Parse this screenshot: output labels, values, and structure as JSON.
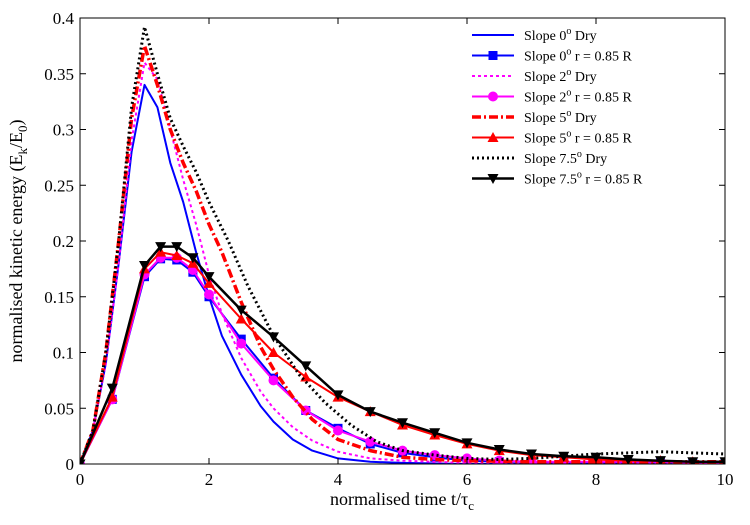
{
  "chart_data": {
    "type": "line",
    "xlabel": {
      "main": "normalised time t/τ",
      "sub": "c"
    },
    "ylabel": {
      "parts": [
        [
          "normalised kinetic energy (E",
          "normal"
        ],
        [
          "k",
          "sub"
        ],
        [
          "/E",
          "normal"
        ],
        [
          "0",
          "sub"
        ],
        [
          ")",
          "normal"
        ]
      ]
    },
    "xlim": [
      0,
      10
    ],
    "ylim": [
      0,
      0.4
    ],
    "xticks": [
      "0",
      "2",
      "4",
      "6",
      "8",
      "10"
    ],
    "yticks": [
      "0",
      "0.05",
      "0.1",
      "0.15",
      "0.2",
      "0.25",
      "0.3",
      "0.35",
      "0.4"
    ],
    "grid": false,
    "legend_position": "top-right",
    "series": [
      {
        "legend": [
          [
            "Slope 0",
            "normal"
          ],
          [
            "o",
            "sup"
          ],
          [
            "    Dry",
            "normal"
          ]
        ],
        "color": "#0000ff",
        "dash": "solid",
        "marker": "none",
        "width": 2,
        "x": [
          0,
          0.2,
          0.4,
          0.6,
          0.8,
          1.0,
          1.2,
          1.4,
          1.6,
          1.8,
          2.0,
          2.2,
          2.5,
          2.8,
          3.0,
          3.3,
          3.6,
          4.0,
          4.5,
          5.0,
          6.0,
          7.0,
          8.0,
          9.0,
          10.0
        ],
        "y": [
          0,
          0.03,
          0.09,
          0.18,
          0.28,
          0.34,
          0.32,
          0.27,
          0.235,
          0.19,
          0.15,
          0.115,
          0.08,
          0.052,
          0.038,
          0.022,
          0.012,
          0.005,
          0.002,
          0.001,
          0,
          0,
          0,
          0,
          0
        ]
      },
      {
        "legend": [
          [
            "Slope 0",
            "normal"
          ],
          [
            "o",
            "sup"
          ],
          [
            "    r = 0.85 R",
            "normal"
          ]
        ],
        "color": "#0000ff",
        "dash": "solid",
        "marker": "square",
        "width": 2,
        "x": [
          0,
          0.5,
          1.0,
          1.25,
          1.5,
          1.75,
          2.0,
          2.5,
          3.0,
          3.5,
          4.0,
          4.5,
          5.0,
          5.5,
          6.0,
          6.5,
          7.0,
          7.5,
          8.0,
          8.5,
          9.0,
          9.5,
          10.0
        ],
        "y": [
          0,
          0.058,
          0.168,
          0.184,
          0.183,
          0.172,
          0.15,
          0.112,
          0.077,
          0.048,
          0.032,
          0.018,
          0.01,
          0.006,
          0.003,
          0.002,
          0.002,
          0.001,
          0.001,
          0.001,
          0.001,
          0.001,
          0.001
        ]
      },
      {
        "legend": [
          [
            "Slope 2",
            "normal"
          ],
          [
            "o",
            "sup"
          ],
          [
            " Dry",
            "normal"
          ]
        ],
        "color": "#ff00ff",
        "dash": "3,3",
        "marker": "none",
        "width": 2,
        "x": [
          0,
          0.2,
          0.4,
          0.6,
          0.8,
          1.0,
          1.2,
          1.4,
          1.6,
          1.8,
          2.0,
          2.2,
          2.5,
          2.8,
          3.0,
          3.3,
          3.6,
          4.0,
          4.5,
          5.0,
          6.0,
          7.0,
          8.0,
          9.0,
          10.0
        ],
        "y": [
          0,
          0.03,
          0.09,
          0.18,
          0.29,
          0.36,
          0.345,
          0.3,
          0.255,
          0.215,
          0.17,
          0.135,
          0.095,
          0.065,
          0.05,
          0.033,
          0.021,
          0.011,
          0.005,
          0.003,
          0.001,
          0,
          0,
          0,
          0
        ]
      },
      {
        "legend": [
          [
            "Slope 2",
            "normal"
          ],
          [
            "o",
            "sup"
          ],
          [
            " r = 0.85 R",
            "normal"
          ]
        ],
        "color": "#ff00ff",
        "dash": "solid",
        "marker": "circle",
        "width": 2,
        "x": [
          0,
          0.5,
          1.0,
          1.25,
          1.5,
          1.75,
          2.0,
          2.5,
          3.0,
          3.5,
          4.0,
          4.5,
          5.0,
          5.5,
          6.0,
          6.5,
          7.0,
          7.5,
          8.0,
          8.5,
          9.0,
          9.5,
          10.0
        ],
        "y": [
          0,
          0.058,
          0.17,
          0.185,
          0.185,
          0.174,
          0.152,
          0.108,
          0.075,
          0.048,
          0.03,
          0.02,
          0.012,
          0.008,
          0.005,
          0.003,
          0.002,
          0.002,
          0.002,
          0.002,
          0.002,
          0.001,
          0.001
        ]
      },
      {
        "legend": [
          [
            "Slope 5",
            "normal"
          ],
          [
            "o",
            "sup"
          ],
          [
            "    Dry",
            "normal"
          ]
        ],
        "color": "#ff0000",
        "dash": "9,3,2,3",
        "marker": "none",
        "width": 3.5,
        "x": [
          0,
          0.2,
          0.4,
          0.6,
          0.8,
          1.0,
          1.2,
          1.4,
          1.6,
          1.8,
          2.0,
          2.2,
          2.5,
          2.8,
          3.0,
          3.3,
          3.6,
          4.0,
          4.5,
          5.0,
          5.5,
          6.0,
          7.0,
          8.0,
          9.0,
          10.0
        ],
        "y": [
          0,
          0.03,
          0.1,
          0.2,
          0.31,
          0.375,
          0.34,
          0.3,
          0.27,
          0.245,
          0.215,
          0.19,
          0.145,
          0.105,
          0.085,
          0.06,
          0.04,
          0.022,
          0.012,
          0.006,
          0.004,
          0.003,
          0.002,
          0.002,
          0.002,
          0.002
        ]
      },
      {
        "legend": [
          [
            "Slope 5",
            "normal"
          ],
          [
            "o",
            "sup"
          ],
          [
            "    r = 0.85 R",
            "normal"
          ]
        ],
        "color": "#ff0000",
        "dash": "solid",
        "marker": "triangle",
        "width": 2,
        "x": [
          0,
          0.5,
          1.0,
          1.25,
          1.5,
          1.75,
          2.0,
          2.5,
          3.0,
          3.5,
          4.0,
          4.5,
          5.0,
          5.5,
          6.0,
          6.5,
          7.0,
          7.5,
          8.0,
          8.5,
          9.0,
          9.5,
          10.0
        ],
        "y": [
          0,
          0.06,
          0.175,
          0.19,
          0.187,
          0.18,
          0.162,
          0.13,
          0.1,
          0.078,
          0.06,
          0.047,
          0.035,
          0.026,
          0.018,
          0.012,
          0.008,
          0.006,
          0.004,
          0.003,
          0.003,
          0.002,
          0.002
        ]
      },
      {
        "legend": [
          [
            "Slope 7.5",
            "normal"
          ],
          [
            "o",
            "sup"
          ],
          [
            " Dry",
            "normal"
          ]
        ],
        "color": "#000000",
        "dash": "2,3",
        "marker": "none",
        "width": 3,
        "x": [
          0,
          0.2,
          0.4,
          0.6,
          0.8,
          1.0,
          1.2,
          1.4,
          1.6,
          1.8,
          2.0,
          2.3,
          2.6,
          3.0,
          3.4,
          3.8,
          4.2,
          4.6,
          5.0,
          5.5,
          6.0,
          6.5,
          7.0,
          7.5,
          8.0,
          8.5,
          9.0,
          9.5,
          10.0
        ],
        "y": [
          0,
          0.03,
          0.1,
          0.2,
          0.32,
          0.392,
          0.35,
          0.31,
          0.285,
          0.262,
          0.235,
          0.2,
          0.16,
          0.115,
          0.08,
          0.055,
          0.035,
          0.02,
          0.012,
          0.008,
          0.005,
          0.004,
          0.005,
          0.007,
          0.009,
          0.01,
          0.011,
          0.01,
          0.009
        ]
      },
      {
        "legend": [
          [
            "Slope 7.5",
            "normal"
          ],
          [
            "o",
            "sup"
          ],
          [
            " r = 0.85 R",
            "normal"
          ]
        ],
        "color": "#000000",
        "dash": "solid",
        "marker": "triangle-down",
        "width": 2.5,
        "x": [
          0,
          0.5,
          1.0,
          1.25,
          1.5,
          1.75,
          2.0,
          2.5,
          3.0,
          3.5,
          4.0,
          4.5,
          5.0,
          5.5,
          6.0,
          6.5,
          7.0,
          7.5,
          8.0,
          8.5,
          9.0,
          9.5,
          10.0
        ],
        "y": [
          0,
          0.068,
          0.178,
          0.195,
          0.195,
          0.185,
          0.168,
          0.138,
          0.114,
          0.088,
          0.062,
          0.047,
          0.037,
          0.028,
          0.019,
          0.013,
          0.009,
          0.007,
          0.006,
          0.004,
          0.003,
          0.002,
          0.002
        ]
      }
    ]
  }
}
